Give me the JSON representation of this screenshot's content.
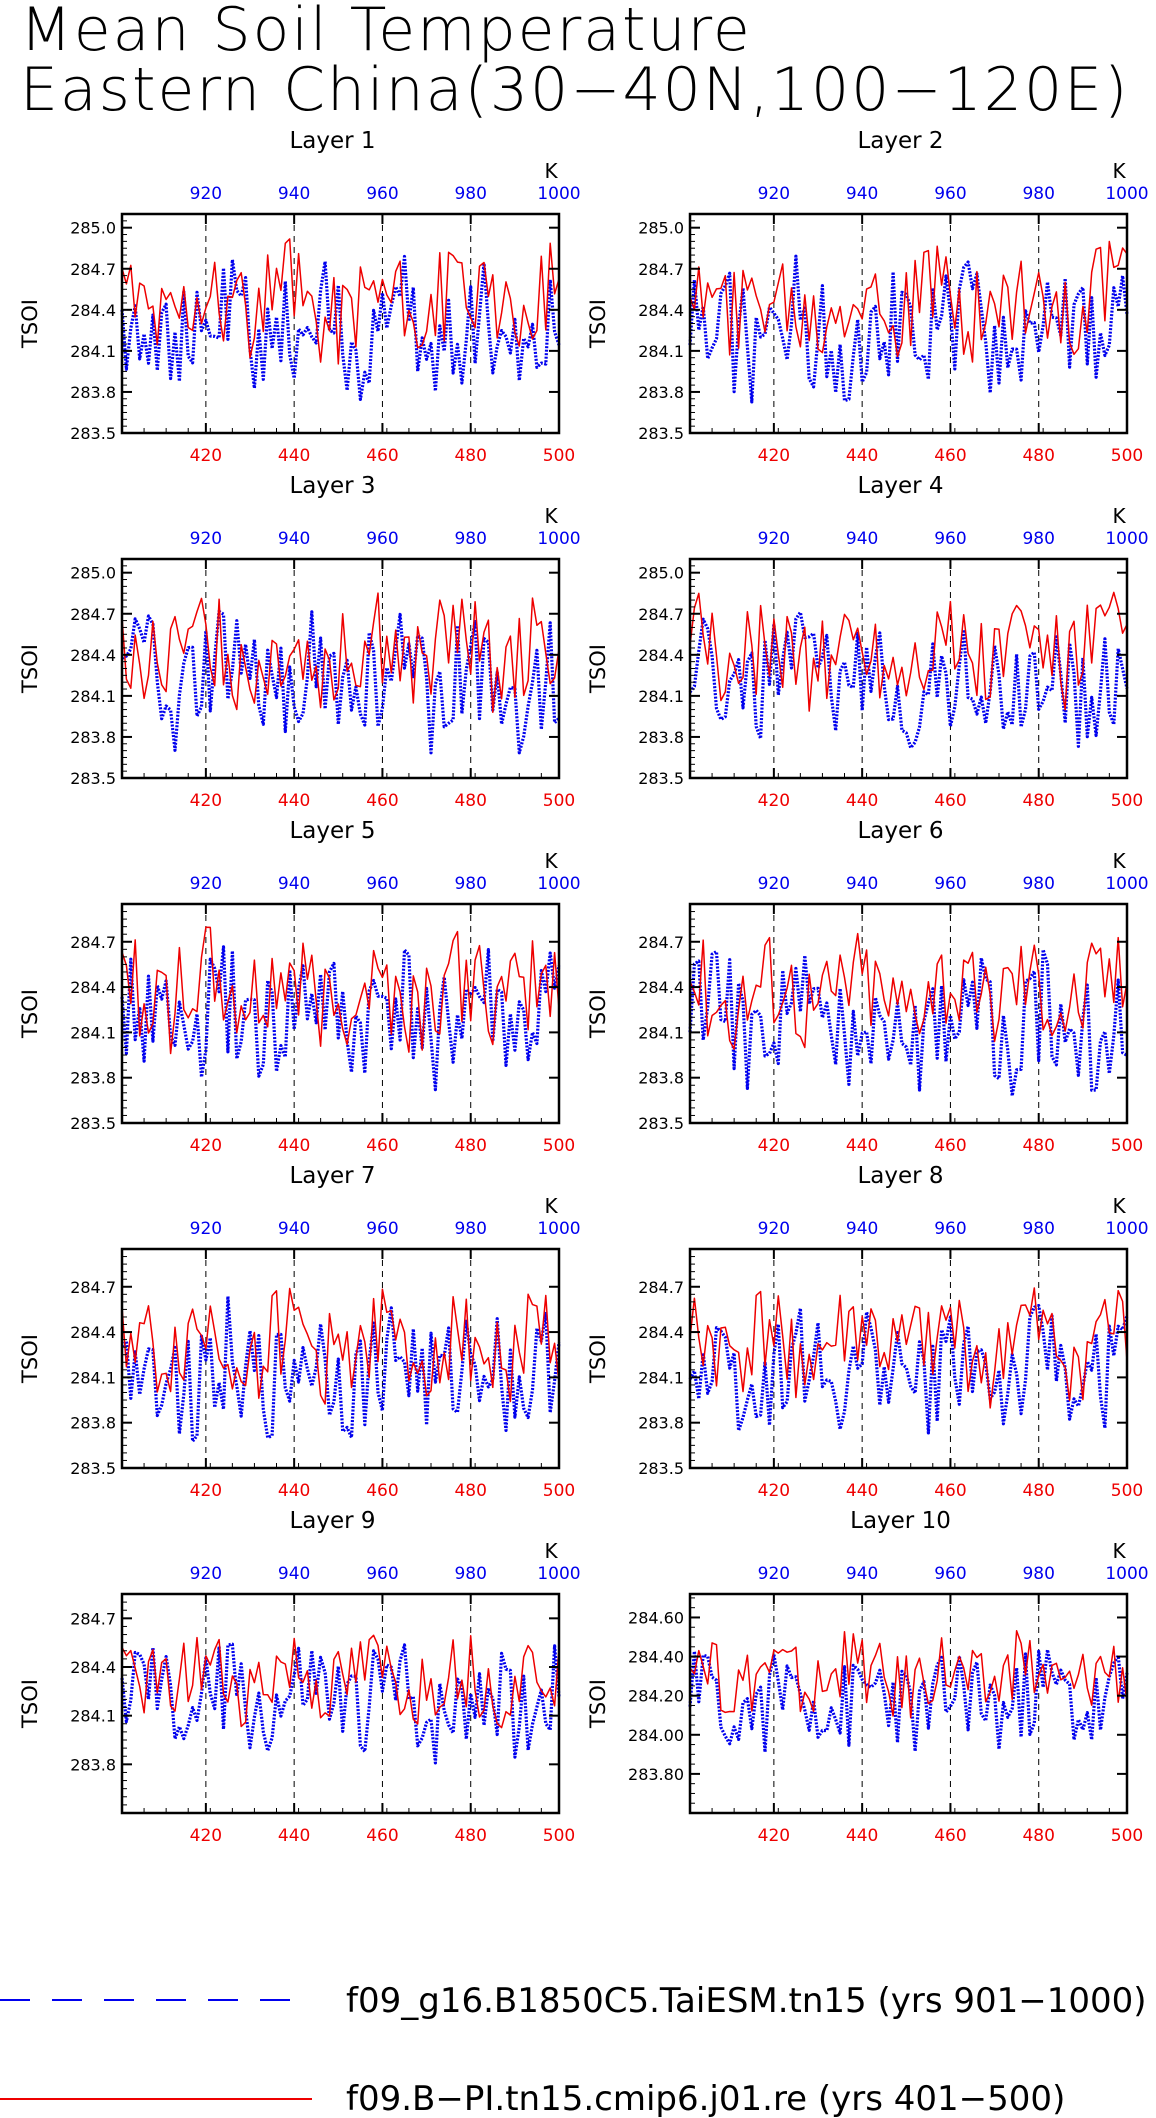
{
  "title": {
    "line1": "Mean Soil Temperature",
    "line2": "Eastern China(30−40N,100−120E)"
  },
  "colors": {
    "model_a": "#0000ee",
    "model_b": "#ee0000",
    "axis": "#000000"
  },
  "chart_data": {
    "type": "line",
    "layout": "5x2 panel grid",
    "x_bottom": {
      "ticks": [
        420,
        440,
        460,
        480,
        500
      ],
      "range": [
        401,
        500
      ],
      "color": "#ee0000"
    },
    "x_top": {
      "ticks": [
        920,
        940,
        960,
        980,
        1000
      ],
      "range": [
        901,
        1000
      ],
      "unit_label": "K",
      "color": "#0000ee"
    },
    "ylabel": "TSOI",
    "legend": [
      {
        "name": "f09_g16.B1850C5.TaiESM.tn15 (yrs 901−1000)",
        "style": "dashed",
        "color": "#0000ee"
      },
      {
        "name": "f09.B−PI.tn15.cmip6.j01.re (yrs 401−500)",
        "style": "solid",
        "color": "#ee0000"
      }
    ],
    "panels": [
      {
        "title": "Layer 1",
        "ylim": [
          283.5,
          285.1
        ],
        "yticks": [
          "283.5",
          "283.8",
          "284.1",
          "284.4",
          "284.7",
          "285.0"
        ],
        "series": [
          {
            "name": "f09_g16.B1850C5.TaiESM.tn15 (yrs 901−1000)",
            "mean": 284.25,
            "amp": 0.55
          },
          {
            "name": "f09.B−PI.tn15.cmip6.j01.re (yrs 401−500)",
            "mean": 284.45,
            "amp": 0.45
          }
        ]
      },
      {
        "title": "Layer 2",
        "ylim": [
          283.5,
          285.1
        ],
        "yticks": [
          "283.5",
          "283.8",
          "284.1",
          "284.4",
          "284.7",
          "285.0"
        ],
        "series": [
          {
            "name": "f09_g16.B1850C5.TaiESM.tn15 (yrs 901−1000)",
            "mean": 284.25,
            "amp": 0.55
          },
          {
            "name": "f09.B−PI.tn15.cmip6.j01.re (yrs 401−500)",
            "mean": 284.45,
            "amp": 0.45
          }
        ]
      },
      {
        "title": "Layer 3",
        "ylim": [
          283.5,
          285.1
        ],
        "yticks": [
          "283.5",
          "283.8",
          "284.1",
          "284.4",
          "284.7",
          "285.0"
        ],
        "series": [
          {
            "name": "f09_g16.B1850C5.TaiESM.tn15 (yrs 901−1000)",
            "mean": 284.22,
            "amp": 0.53
          },
          {
            "name": "f09.B−PI.tn15.cmip6.j01.re (yrs 401−500)",
            "mean": 284.42,
            "amp": 0.44
          }
        ]
      },
      {
        "title": "Layer 4",
        "ylim": [
          283.5,
          285.1
        ],
        "yticks": [
          "283.5",
          "283.8",
          "284.1",
          "284.4",
          "284.7",
          "285.0"
        ],
        "series": [
          {
            "name": "f09_g16.B1850C5.TaiESM.tn15 (yrs 901−1000)",
            "mean": 284.22,
            "amp": 0.53
          },
          {
            "name": "f09.B−PI.tn15.cmip6.j01.re (yrs 401−500)",
            "mean": 284.42,
            "amp": 0.44
          }
        ]
      },
      {
        "title": "Layer 5",
        "ylim": [
          283.5,
          284.95
        ],
        "yticks": [
          "283.5",
          "283.8",
          "284.1",
          "284.4",
          "284.7"
        ],
        "series": [
          {
            "name": "f09_g16.B1850C5.TaiESM.tn15 (yrs 901−1000)",
            "mean": 284.18,
            "amp": 0.5
          },
          {
            "name": "f09.B−PI.tn15.cmip6.j01.re (yrs 401−500)",
            "mean": 284.38,
            "amp": 0.42
          }
        ]
      },
      {
        "title": "Layer 6",
        "ylim": [
          283.5,
          284.95
        ],
        "yticks": [
          "283.5",
          "283.8",
          "284.1",
          "284.4",
          "284.7"
        ],
        "series": [
          {
            "name": "f09_g16.B1850C5.TaiESM.tn15 (yrs 901−1000)",
            "mean": 284.18,
            "amp": 0.5
          },
          {
            "name": "f09.B−PI.tn15.cmip6.j01.re (yrs 401−500)",
            "mean": 284.38,
            "amp": 0.42
          }
        ]
      },
      {
        "title": "Layer 7",
        "ylim": [
          283.5,
          284.95
        ],
        "yticks": [
          "283.5",
          "283.8",
          "284.1",
          "284.4",
          "284.7"
        ],
        "series": [
          {
            "name": "f09_g16.B1850C5.TaiESM.tn15 (yrs 901−1000)",
            "mean": 284.15,
            "amp": 0.47
          },
          {
            "name": "f09.B−PI.tn15.cmip6.j01.re (yrs 401−500)",
            "mean": 284.32,
            "amp": 0.4
          }
        ]
      },
      {
        "title": "Layer 8",
        "ylim": [
          283.5,
          284.95
        ],
        "yticks": [
          "283.5",
          "283.8",
          "284.1",
          "284.4",
          "284.7"
        ],
        "series": [
          {
            "name": "f09_g16.B1850C5.TaiESM.tn15 (yrs 901−1000)",
            "mean": 284.15,
            "amp": 0.45
          },
          {
            "name": "f09.B−PI.tn15.cmip6.j01.re (yrs 401−500)",
            "mean": 284.3,
            "amp": 0.4
          }
        ]
      },
      {
        "title": "Layer 9",
        "ylim": [
          283.5,
          284.85
        ],
        "yticks": [
          "283.8",
          "284.1",
          "284.4",
          "284.7"
        ],
        "series": [
          {
            "name": "f09_g16.B1850C5.TaiESM.tn15 (yrs 901−1000)",
            "mean": 284.2,
            "amp": 0.38
          },
          {
            "name": "f09.B−PI.tn15.cmip6.j01.re (yrs 401−500)",
            "mean": 284.33,
            "amp": 0.3
          }
        ]
      },
      {
        "title": "Layer 10",
        "ylim": [
          283.6,
          284.72
        ],
        "yticks": [
          "283.80",
          "284.00",
          "284.20",
          "284.40",
          "284.60"
        ],
        "series": [
          {
            "name": "f09_g16.B1850C5.TaiESM.tn15 (yrs 901−1000)",
            "mean": 284.18,
            "amp": 0.3
          },
          {
            "name": "f09.B−PI.tn15.cmip6.j01.re (yrs 401−500)",
            "mean": 284.3,
            "amp": 0.24
          }
        ]
      }
    ]
  }
}
